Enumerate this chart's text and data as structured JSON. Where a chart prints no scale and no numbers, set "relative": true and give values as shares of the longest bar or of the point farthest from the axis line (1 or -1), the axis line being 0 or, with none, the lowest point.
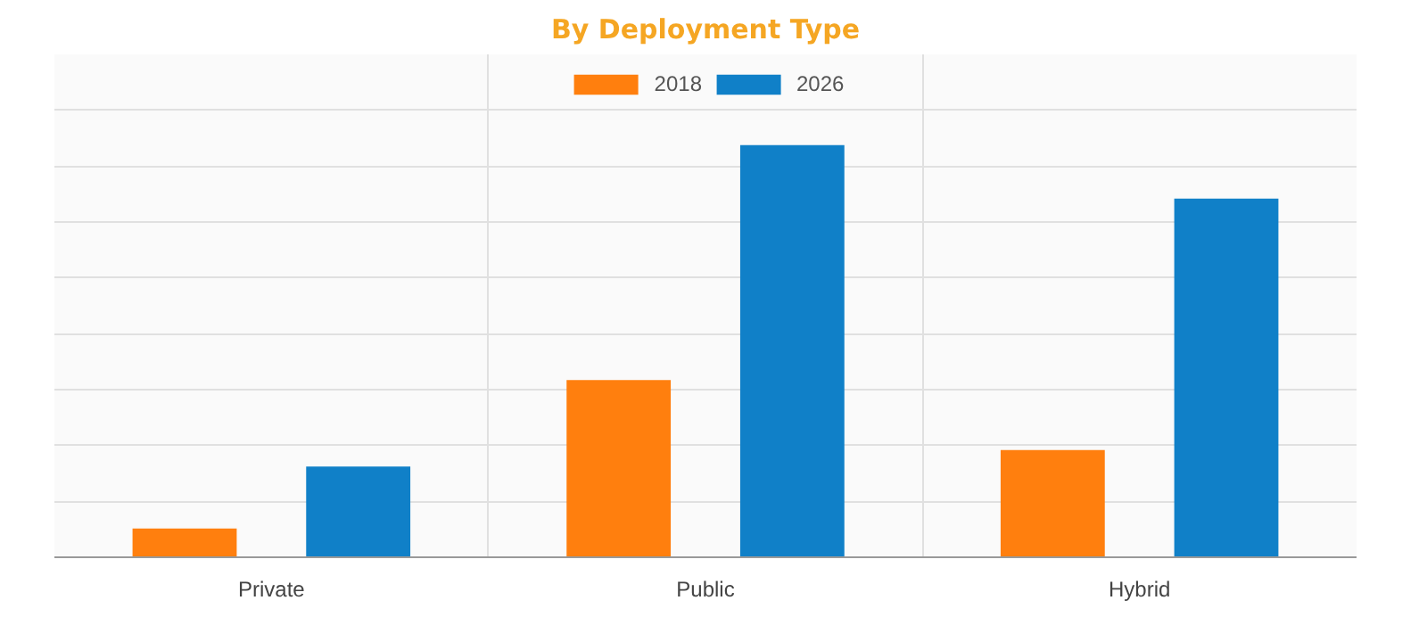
{
  "chart_data": {
    "type": "bar",
    "title": "By Deployment Type",
    "categories": [
      "Private",
      "Public",
      "Hybrid"
    ],
    "relative": true,
    "grid": true,
    "legend": "top",
    "series": [
      {
        "name": "2018",
        "color": "#ff7f0e",
        "values": [
          0.07,
          0.43,
          0.26
        ]
      },
      {
        "name": "2026",
        "color": "#1080c8",
        "values": [
          0.22,
          1,
          0.87
        ]
      }
    ]
  }
}
